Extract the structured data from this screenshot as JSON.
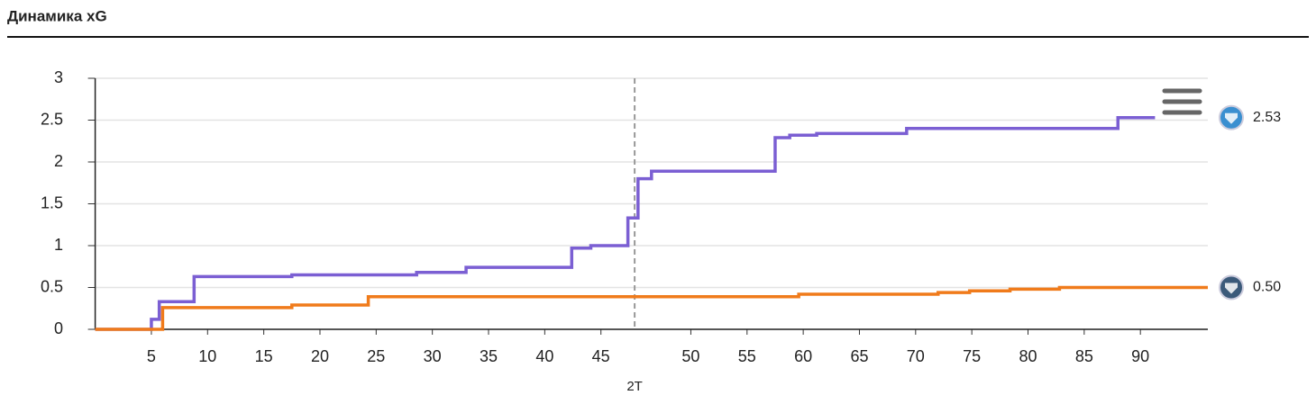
{
  "title": "Динамика xG",
  "chart_data": {
    "type": "step",
    "series": [
      {
        "name": null,
        "color": "#7b5fd3",
        "x": [
          0,
          5.0,
          5.7,
          8.8,
          17.5,
          28.6,
          33.0,
          42.4,
          44.1,
          47.4,
          48.3,
          49.5,
          60.5,
          61.8,
          64.2,
          72.2,
          91.0,
          94.3
        ],
        "values": [
          0,
          0.12,
          0.33,
          0.63,
          0.65,
          0.68,
          0.74,
          0.97,
          1.0,
          1.33,
          1.8,
          1.89,
          2.29,
          2.32,
          2.34,
          2.4,
          2.53,
          2.53
        ],
        "last_label": "2.53"
      },
      {
        "name": null,
        "color": "#f07b1b",
        "x": [
          0,
          6.0,
          17.5,
          24.3,
          62.6,
          75.0,
          77.8,
          81.4,
          85.8,
          99
        ],
        "values": [
          0,
          0.26,
          0.29,
          0.39,
          0.42,
          0.44,
          0.46,
          0.48,
          0.5,
          0.5
        ],
        "last_label": "0.50"
      }
    ],
    "xlim": [
      0,
      99
    ],
    "xticks": [
      5,
      10,
      15,
      20,
      25,
      30,
      35,
      40,
      45,
      {
        "value": 53,
        "label": "50"
      },
      {
        "value": 58,
        "label": "55"
      },
      {
        "value": 63,
        "label": "60"
      },
      {
        "value": 68,
        "label": "65"
      },
      {
        "value": 73,
        "label": "70"
      },
      {
        "value": 78,
        "label": "75"
      },
      {
        "value": 83,
        "label": "80"
      },
      {
        "value": 88,
        "label": "85"
      },
      {
        "value": 93,
        "label": "90"
      }
    ],
    "ylim": [
      0,
      3
    ],
    "yticks": [
      0,
      0.5,
      1,
      1.5,
      2,
      2.5,
      3
    ],
    "grid": true,
    "divider": {
      "x": 48,
      "label": "2T"
    }
  }
}
